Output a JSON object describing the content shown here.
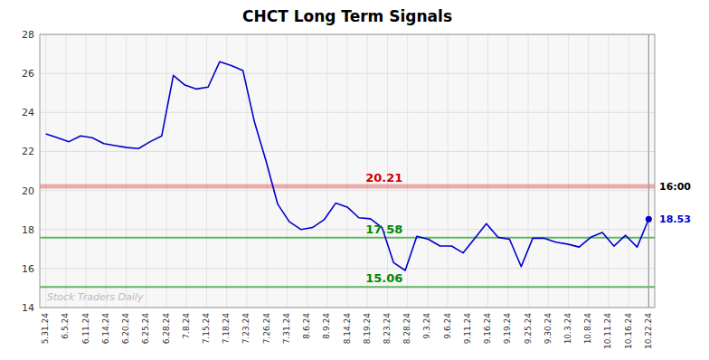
{
  "chart_data": {
    "type": "line",
    "title": "CHCT Long Term Signals",
    "color": "#0000cc",
    "grid": true,
    "xlim": [
      -0.3,
      30.3
    ],
    "xticks": [
      {
        "value": 0,
        "label": "5.31.24"
      },
      {
        "value": 1,
        "label": "6.5.24"
      },
      {
        "value": 2,
        "label": "6.11.24"
      },
      {
        "value": 3,
        "label": "6.14.24"
      },
      {
        "value": 4,
        "label": "6.20.24"
      },
      {
        "value": 5,
        "label": "6.25.24"
      },
      {
        "value": 6,
        "label": "6.28.24"
      },
      {
        "value": 7,
        "label": "7.8.24"
      },
      {
        "value": 8,
        "label": "7.15.24"
      },
      {
        "value": 9,
        "label": "7.18.24"
      },
      {
        "value": 10,
        "label": "7.23.24"
      },
      {
        "value": 11,
        "label": "7.26.24"
      },
      {
        "value": 12,
        "label": "7.31.24"
      },
      {
        "value": 13,
        "label": "8.6.24"
      },
      {
        "value": 14,
        "label": "8.9.24"
      },
      {
        "value": 15,
        "label": "8.14.24"
      },
      {
        "value": 16,
        "label": "8.19.24"
      },
      {
        "value": 17,
        "label": "8.23.24"
      },
      {
        "value": 18,
        "label": "8.28.24"
      },
      {
        "value": 19,
        "label": "9.3.24"
      },
      {
        "value": 20,
        "label": "9.6.24"
      },
      {
        "value": 21,
        "label": "9.11.24"
      },
      {
        "value": 22,
        "label": "9.16.24"
      },
      {
        "value": 23,
        "label": "9.19.24"
      },
      {
        "value": 24,
        "label": "9.25.24"
      },
      {
        "value": 25,
        "label": "9.30.24"
      },
      {
        "value": 26,
        "label": "10.3.24"
      },
      {
        "value": 27,
        "label": "10.8.24"
      },
      {
        "value": 28,
        "label": "10.11.24"
      },
      {
        "value": 29,
        "label": "10.16.24"
      },
      {
        "value": 30,
        "label": "10.22.24"
      }
    ],
    "ylim": [
      14,
      28
    ],
    "yticks": [
      14,
      16,
      18,
      20,
      22,
      24,
      26,
      28
    ],
    "x": [
      0,
      0.5769,
      1.1538,
      1.7308,
      2.3077,
      2.8846,
      3.4615,
      4.0385,
      4.6154,
      5.1923,
      5.7692,
      6.3462,
      6.9231,
      7.5,
      8.0769,
      8.6538,
      9.2308,
      9.8077,
      10.3846,
      10.9615,
      11.5385,
      12.1154,
      12.6923,
      13.2692,
      13.8462,
      14.4231,
      15,
      15.5769,
      16.1538,
      16.7308,
      17.3077,
      17.8846,
      18.4615,
      19.0385,
      19.6154,
      20.1923,
      20.7692,
      21.3462,
      21.9231,
      22.5,
      23.0769,
      23.6538,
      24.2308,
      24.8077,
      25.3846,
      25.9615,
      26.5385,
      27.1154,
      27.6923,
      28.2692,
      28.8462,
      29.4231,
      30
    ],
    "values": [
      22.9,
      22.7,
      22.5,
      22.8,
      22.7,
      22.4,
      22.3,
      22.2,
      22.15,
      22.5,
      22.8,
      25.9,
      25.4,
      25.2,
      25.3,
      26.6,
      26.4,
      26.15,
      23.5,
      21.5,
      19.3,
      18.4,
      18.0,
      18.1,
      18.5,
      19.35,
      19.15,
      18.6,
      18.55,
      18.1,
      16.3,
      15.9,
      17.65,
      17.5,
      17.15,
      17.15,
      16.8,
      17.55,
      18.3,
      17.6,
      17.5,
      16.1,
      17.55,
      17.55,
      17.35,
      17.25,
      17.1,
      17.6,
      17.85,
      17.15,
      17.7,
      17.1,
      18.53
    ],
    "reference_lines": [
      {
        "y": 20.21,
        "label": "20.21",
        "color": "#cc0000"
      },
      {
        "y": 17.58,
        "label": "17.58",
        "color": "#008800"
      },
      {
        "y": 15.06,
        "label": "15.06",
        "color": "#008800"
      }
    ],
    "annotations": [
      {
        "text": "16:00",
        "y": 20.21
      },
      {
        "text": "18.53",
        "y": 18.53
      },
      {
        "text": "Stock Traders Daily"
      }
    ]
  }
}
